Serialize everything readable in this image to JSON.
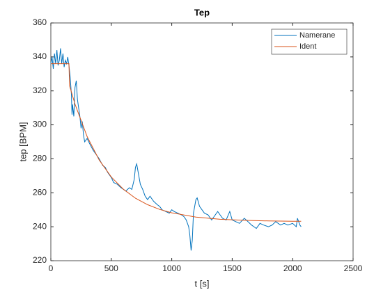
{
  "chart_data": {
    "type": "line",
    "title": "Tep",
    "xlabel": "t [s]",
    "ylabel": "tep [BPM]",
    "xlim": [
      0,
      2500
    ],
    "xticks": [
      0,
      500,
      1000,
      1500,
      2000,
      2500
    ],
    "ylim": [
      220,
      360
    ],
    "yticks": [
      220,
      240,
      260,
      280,
      300,
      320,
      340,
      360
    ],
    "legend": "northeast",
    "grid": false,
    "series": [
      {
        "name": "Namerane",
        "color": "#0072BD",
        "x": [
          0,
          10,
          20,
          30,
          40,
          50,
          60,
          70,
          80,
          90,
          100,
          110,
          120,
          130,
          140,
          150,
          160,
          170,
          175,
          180,
          190,
          200,
          210,
          220,
          230,
          240,
          250,
          260,
          270,
          280,
          300,
          320,
          350,
          380,
          400,
          430,
          450,
          470,
          500,
          520,
          550,
          580,
          600,
          620,
          650,
          670,
          690,
          700,
          710,
          720,
          740,
          760,
          780,
          800,
          820,
          850,
          880,
          900,
          920,
          950,
          980,
          1000,
          1020,
          1050,
          1080,
          1100,
          1120,
          1140,
          1150,
          1160,
          1170,
          1180,
          1200,
          1210,
          1230,
          1250,
          1270,
          1300,
          1330,
          1350,
          1380,
          1400,
          1420,
          1450,
          1480,
          1500,
          1530,
          1560,
          1600,
          1630,
          1660,
          1700,
          1730,
          1760,
          1800,
          1830,
          1860,
          1900,
          1930,
          1960,
          2000,
          2030,
          2040,
          2060,
          2070
        ],
        "values": [
          336,
          340,
          333,
          342,
          336,
          344,
          335,
          338,
          345,
          336,
          342,
          334,
          338,
          336,
          340,
          335,
          328,
          318,
          306,
          312,
          305,
          322,
          326,
          315,
          310,
          305,
          298,
          302,
          294,
          290,
          292,
          289,
          285,
          282,
          280,
          276,
          275,
          272,
          269,
          266,
          265,
          263,
          262,
          261,
          263,
          262,
          268,
          275,
          277,
          273,
          265,
          262,
          258,
          256,
          258,
          255,
          253,
          252,
          250,
          249,
          248,
          250,
          249,
          248,
          247,
          246,
          244,
          240,
          235,
          226,
          232,
          248,
          256,
          257,
          252,
          250,
          248,
          247,
          244,
          246,
          249,
          247,
          245,
          244,
          249,
          244,
          243,
          242,
          245,
          243,
          241,
          239,
          242,
          241,
          240,
          241,
          243,
          241,
          242,
          241,
          242,
          240,
          245,
          241,
          240
        ]
      },
      {
        "name": "Ident",
        "color": "#D95319",
        "x": [
          0,
          150,
          155,
          200,
          300,
          400,
          500,
          600,
          700,
          800,
          900,
          1000,
          1200,
          1400,
          1600,
          1800,
          2000,
          2070
        ],
        "values": [
          336,
          336,
          323,
          312.2,
          293.1,
          279.3,
          269.3,
          262.1,
          256.8,
          253,
          250.2,
          248.2,
          245.7,
          244.4,
          243.8,
          243.4,
          243.2,
          243.2
        ]
      }
    ]
  }
}
